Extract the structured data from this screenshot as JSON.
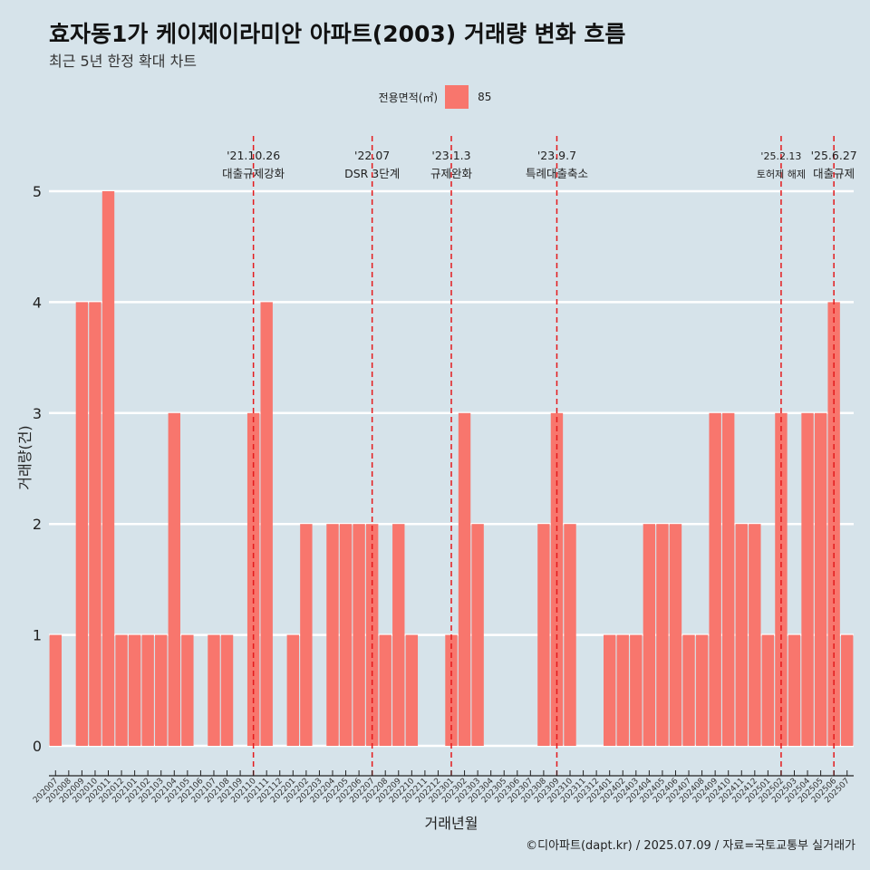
{
  "title": "효자동1가 케이제이라미안 아파트(2003) 거래량 변화 흐름",
  "subtitle": "최근 5년 한정 확대 차트",
  "caption": "©디아파트(dapt.kr) / 2025.07.09 / 자료=국토교통부 실거래가",
  "legend": {
    "title": "전용면적(㎡)",
    "items": [
      {
        "label": "85",
        "color": "#f8766d"
      }
    ]
  },
  "chart_data": {
    "type": "bar",
    "xlabel": "거래년월",
    "ylabel": "거래량(건)",
    "ylim": [
      0,
      5
    ],
    "y_ticks": [
      0,
      1,
      2,
      3,
      4,
      5
    ],
    "bar_color": "#f8766d",
    "grid": true,
    "legend_position": "top",
    "categories": [
      "202007",
      "202008",
      "202009",
      "202010",
      "202011",
      "202012",
      "202101",
      "202102",
      "202103",
      "202104",
      "202105",
      "202106",
      "202107",
      "202108",
      "202109",
      "202110",
      "202111",
      "202112",
      "202201",
      "202202",
      "202203",
      "202204",
      "202205",
      "202206",
      "202207",
      "202208",
      "202209",
      "202210",
      "202211",
      "202212",
      "202301",
      "202302",
      "202303",
      "202304",
      "202305",
      "202306",
      "202307",
      "202308",
      "202309",
      "202310",
      "202311",
      "202312",
      "202401",
      "202402",
      "202403",
      "202404",
      "202405",
      "202406",
      "202407",
      "202408",
      "202409",
      "202410",
      "202411",
      "202412",
      "202501",
      "202502",
      "202503",
      "202504",
      "202505",
      "202506",
      "202507"
    ],
    "series": [
      {
        "name": "85",
        "values": [
          1,
          0,
          4,
          4,
          5,
          1,
          1,
          1,
          1,
          3,
          1,
          0,
          1,
          1,
          0,
          3,
          4,
          0,
          1,
          2,
          0,
          2,
          2,
          2,
          2,
          1,
          2,
          1,
          0,
          0,
          1,
          3,
          2,
          0,
          0,
          0,
          0,
          2,
          3,
          2,
          0,
          0,
          1,
          1,
          1,
          2,
          2,
          2,
          1,
          1,
          3,
          3,
          2,
          2,
          1,
          3,
          1,
          3,
          3,
          4,
          1
        ]
      }
    ],
    "annotations": [
      {
        "category": "202110",
        "date": "'21.10.26",
        "text": "대출규제강화"
      },
      {
        "category": "202207",
        "date": "'22.07",
        "text": "DSR 3단계"
      },
      {
        "category": "202301",
        "date": "'23.1.3",
        "text": "규제완화"
      },
      {
        "category": "202309",
        "date": "'23.9.7",
        "text": "특례대출축소"
      },
      {
        "category": "202502",
        "date": "'25.2.13",
        "text": "토허제 해제"
      },
      {
        "category": "202506",
        "date": "'25.6.27",
        "text": "대출규제"
      }
    ]
  }
}
